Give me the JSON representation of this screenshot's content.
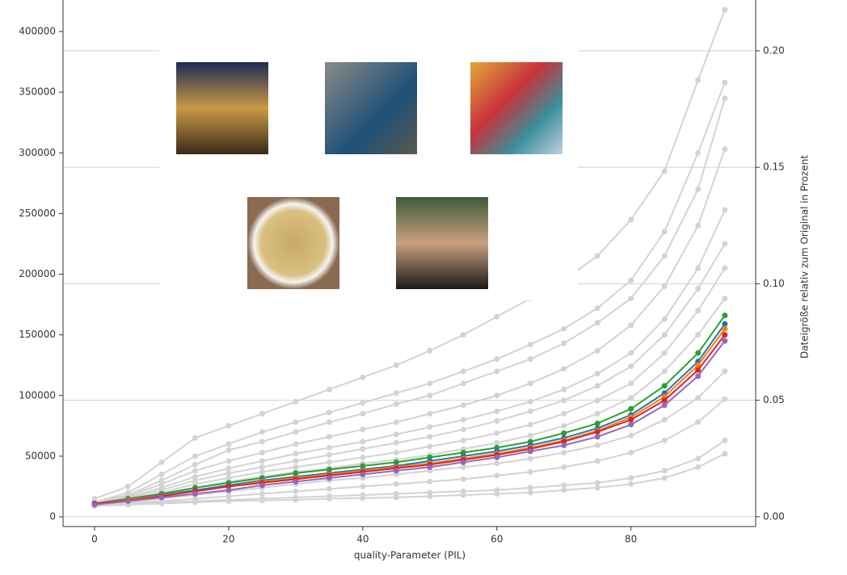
{
  "chart_data": {
    "type": "line",
    "xlabel": "quality-Parameter (PIL)",
    "y2label": "Dateigröße relativ zum Original in Prozent",
    "x": [
      0,
      5,
      10,
      15,
      20,
      25,
      30,
      35,
      40,
      45,
      50,
      55,
      60,
      65,
      70,
      75,
      80,
      85,
      90,
      94
    ],
    "xlim": [
      -4.7,
      98.6
    ],
    "xticks": [
      0,
      20,
      40,
      60,
      80
    ],
    "ylim": [
      -8000,
      426000
    ],
    "yticks": [
      0,
      50000,
      100000,
      150000,
      200000,
      250000,
      300000,
      350000,
      400000
    ],
    "y2lim": [
      -0.0042,
      0.2218
    ],
    "y2ticks": [
      {
        "value": 0,
        "label": "0.00"
      },
      {
        "value": 0.05,
        "label": "0.05"
      },
      {
        "value": 0.1,
        "label": "0.10"
      },
      {
        "value": 0.15,
        "label": "0.15"
      },
      {
        "value": 0.2,
        "label": "0.20"
      }
    ],
    "grid": true,
    "series": [
      {
        "color": "#d3d3d3",
        "values": [
          15000,
          25000,
          45000,
          65000,
          75000,
          85000,
          95000,
          105000,
          115000,
          125000,
          137000,
          150000,
          165000,
          180000,
          195000,
          215000,
          245000,
          285000,
          360000,
          418000
        ]
      },
      {
        "color": "#d3d3d3",
        "values": [
          12000,
          20000,
          35000,
          50000,
          60000,
          70000,
          78000,
          86000,
          94000,
          102000,
          110000,
          120000,
          130000,
          142000,
          155000,
          172000,
          195000,
          235000,
          300000,
          358000
        ]
      },
      {
        "color": "#d3d3d3",
        "values": [
          12000,
          18000,
          30000,
          43000,
          55000,
          62000,
          70000,
          78000,
          85000,
          93000,
          100000,
          110000,
          120000,
          130000,
          143000,
          160000,
          180000,
          215000,
          270000,
          345000
        ]
      },
      {
        "color": "#d3d3d3",
        "values": [
          11000,
          17000,
          27000,
          38000,
          46000,
          53000,
          60000,
          66000,
          72000,
          78000,
          85000,
          92000,
          100000,
          110000,
          122000,
          137000,
          158000,
          190000,
          240000,
          303000
        ]
      },
      {
        "color": "#d3d3d3",
        "values": [
          11000,
          16000,
          24000,
          33000,
          40000,
          46000,
          52000,
          57000,
          62000,
          68000,
          74000,
          80000,
          87000,
          95000,
          105000,
          118000,
          135000,
          163000,
          205000,
          253000
        ]
      },
      {
        "color": "#d3d3d3",
        "values": [
          10000,
          15000,
          22000,
          30000,
          36000,
          41000,
          46000,
          51000,
          56000,
          61000,
          66000,
          72000,
          79000,
          87000,
          96000,
          108000,
          124000,
          150000,
          188000,
          225000
        ]
      },
      {
        "color": "#d3d3d3",
        "values": [
          10000,
          14000,
          20000,
          27000,
          32000,
          37000,
          41000,
          45000,
          49000,
          53000,
          58000,
          63000,
          69000,
          76000,
          85000,
          96000,
          110000,
          135000,
          170000,
          205000
        ]
      },
      {
        "color": "#d3d3d3",
        "values": [
          10000,
          13000,
          18000,
          24000,
          29000,
          33000,
          37000,
          40000,
          44000,
          47000,
          51000,
          56000,
          61000,
          67000,
          75000,
          85000,
          98000,
          120000,
          150000,
          180000
        ]
      },
      {
        "color": "#d3d3d3",
        "values": [
          10000,
          12000,
          15000,
          18000,
          21000,
          24000,
          27000,
          30000,
          32000,
          35000,
          38000,
          41000,
          44000,
          48000,
          53000,
          59000,
          67000,
          80000,
          98000,
          120000
        ]
      },
      {
        "color": "#d3d3d3",
        "values": [
          10000,
          11000,
          13000,
          15000,
          17000,
          19000,
          21000,
          23000,
          25000,
          27000,
          29000,
          31000,
          34000,
          37000,
          41000,
          46000,
          53000,
          63000,
          78000,
          97000
        ]
      },
      {
        "color": "#d3d3d3",
        "values": [
          9000,
          10000,
          12000,
          13000,
          14000,
          15000,
          16000,
          17000,
          18000,
          19000,
          20000,
          21000,
          22000,
          24000,
          26000,
          28000,
          32000,
          38000,
          48000,
          63000
        ]
      },
      {
        "color": "#d3d3d3",
        "values": [
          9000,
          10000,
          11000,
          12000,
          13000,
          13500,
          14000,
          15000,
          15500,
          16000,
          17000,
          18000,
          19000,
          20000,
          22000,
          24000,
          27000,
          32000,
          41000,
          52000
        ]
      },
      {
        "color": "#2ca02c",
        "values": [
          11000,
          15000,
          19000,
          24000,
          28000,
          32000,
          36000,
          39000,
          42000,
          45000,
          49000,
          53000,
          57000,
          62000,
          69000,
          77000,
          89000,
          108000,
          135000,
          166000
        ]
      },
      {
        "color": "#1f77b4",
        "values": [
          11000,
          14000,
          18000,
          22000,
          26000,
          30000,
          33000,
          36000,
          39000,
          42000,
          46000,
          50000,
          54000,
          59000,
          65000,
          73000,
          84000,
          102000,
          128000,
          159000
        ]
      },
      {
        "color": "#ff7f0e",
        "values": [
          11000,
          14000,
          17500,
          21000,
          25000,
          29000,
          32000,
          35000,
          38000,
          41000,
          44000,
          48000,
          52000,
          57000,
          63000,
          71000,
          82000,
          99000,
          125000,
          155000
        ]
      },
      {
        "color": "#d62728",
        "values": [
          11000,
          13500,
          17000,
          21000,
          25000,
          28000,
          31000,
          34000,
          37000,
          40000,
          43000,
          47000,
          51000,
          56000,
          62000,
          70000,
          80000,
          96000,
          121000,
          150000
        ]
      },
      {
        "color": "#9467bd",
        "values": [
          10000,
          13000,
          16000,
          19000,
          22000,
          26000,
          29000,
          32000,
          35000,
          38000,
          41000,
          45000,
          49000,
          54000,
          59000,
          66000,
          76000,
          92000,
          116000,
          145000
        ]
      }
    ]
  }
}
